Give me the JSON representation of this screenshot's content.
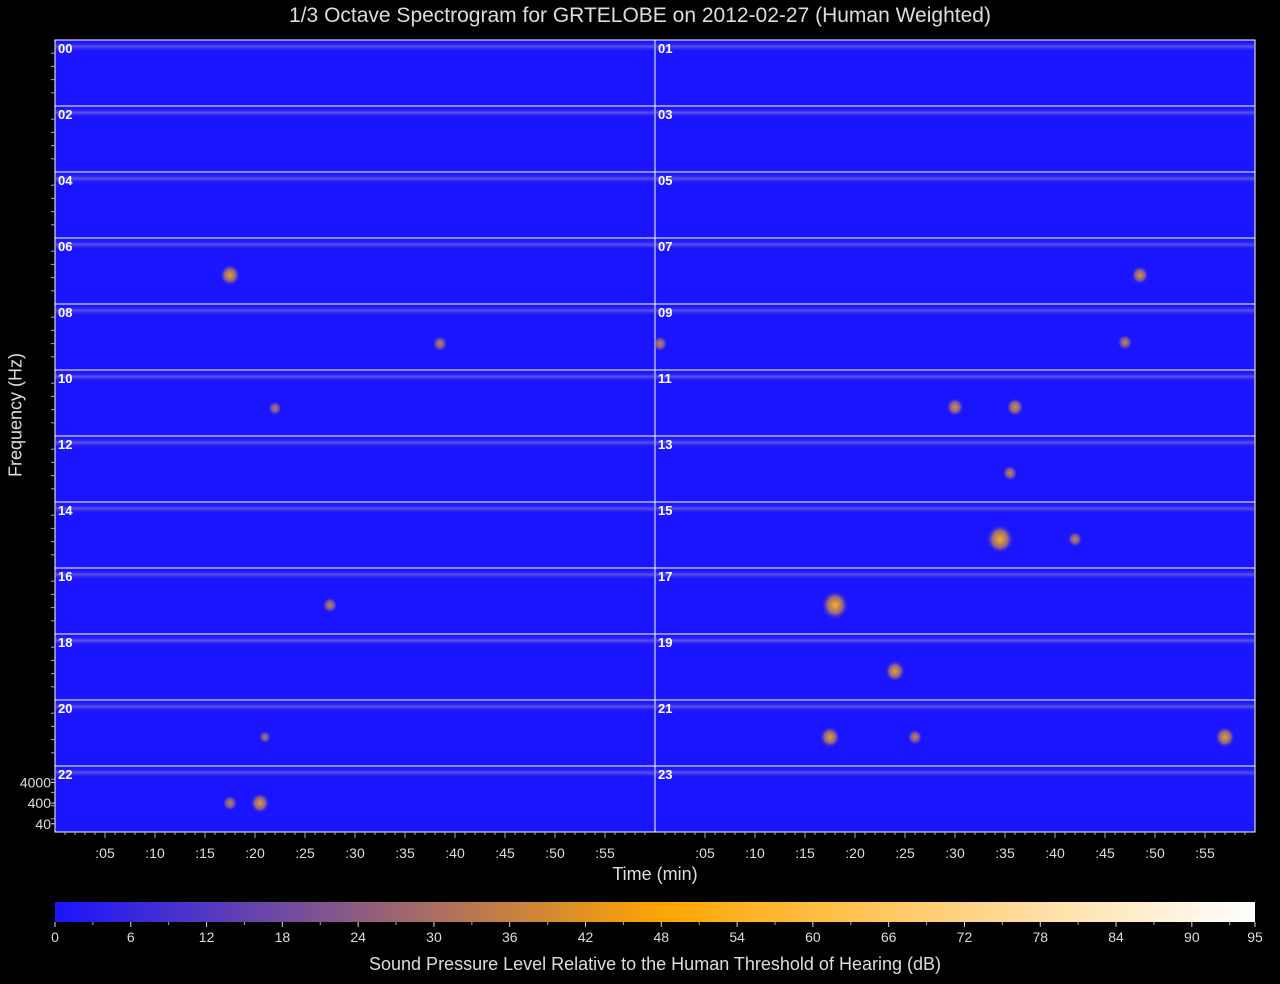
{
  "chart_data": {
    "type": "heatmap",
    "title": "1/3 Octave Spectrogram for GRTELOBE on 2012-02-27 (Human Weighted)",
    "xlabel": "Time (min)",
    "ylabel": "Frequency (Hz)",
    "hours": [
      "00",
      "01",
      "02",
      "03",
      "04",
      "05",
      "06",
      "07",
      "08",
      "09",
      "10",
      "11",
      "12",
      "13",
      "14",
      "15",
      "16",
      "17",
      "18",
      "19",
      "20",
      "21",
      "22",
      "23"
    ],
    "x_tick_labels": [
      ":05",
      ":10",
      ":15",
      ":20",
      ":25",
      ":30",
      ":35",
      ":40",
      ":45",
      ":50",
      ":55"
    ],
    "x_ticks_min": [
      5,
      10,
      15,
      20,
      25,
      30,
      35,
      40,
      45,
      50,
      55
    ],
    "xlim_min": [
      0,
      60
    ],
    "y_tick_labels": [
      "4000",
      "400",
      "40"
    ],
    "y_ticks_hz": [
      4000,
      400,
      40
    ],
    "ylim_hz": [
      20,
      20000
    ],
    "y_scale": "log",
    "colorbar": {
      "label": "Sound Pressure Level Relative to the Human Threshold of Hearing (dB)",
      "tick_labels": [
        "0",
        "6",
        "12",
        "18",
        "24",
        "30",
        "36",
        "42",
        "48",
        "54",
        "60",
        "66",
        "72",
        "78",
        "84",
        "90",
        "95"
      ],
      "ticks_db": [
        0,
        6,
        12,
        18,
        24,
        30,
        36,
        42,
        48,
        54,
        60,
        66,
        72,
        78,
        84,
        90,
        95
      ],
      "range_db": [
        0,
        95
      ],
      "colors": [
        "#1a14ff",
        "#ffa500",
        "#ffffff"
      ]
    },
    "events": [
      {
        "hour": "06",
        "minute": 17.5,
        "freq_hz": 400,
        "db": 42
      },
      {
        "hour": "07",
        "minute": 48.5,
        "freq_hz": 400,
        "db": 36
      },
      {
        "hour": "08",
        "minute": 38.5,
        "freq_hz": 300,
        "db": 30
      },
      {
        "hour": "09",
        "minute": 0.5,
        "freq_hz": 300,
        "db": 30
      },
      {
        "hour": "09",
        "minute": 47,
        "freq_hz": 350,
        "db": 30
      },
      {
        "hour": "10",
        "minute": 22,
        "freq_hz": 350,
        "db": 27
      },
      {
        "hour": "11",
        "minute": 30,
        "freq_hz": 400,
        "db": 36
      },
      {
        "hour": "11",
        "minute": 36,
        "freq_hz": 400,
        "db": 36
      },
      {
        "hour": "13",
        "minute": 35.5,
        "freq_hz": 400,
        "db": 30
      },
      {
        "hour": "15",
        "minute": 34.5,
        "freq_hz": 400,
        "db": 58
      },
      {
        "hour": "15",
        "minute": 42,
        "freq_hz": 400,
        "db": 30
      },
      {
        "hour": "16",
        "minute": 27.5,
        "freq_hz": 400,
        "db": 30
      },
      {
        "hour": "17",
        "minute": 18,
        "freq_hz": 400,
        "db": 58
      },
      {
        "hour": "19",
        "minute": 24,
        "freq_hz": 400,
        "db": 42
      },
      {
        "hour": "20",
        "minute": 21,
        "freq_hz": 400,
        "db": 24
      },
      {
        "hour": "21",
        "minute": 17.5,
        "freq_hz": 400,
        "db": 42
      },
      {
        "hour": "21",
        "minute": 26,
        "freq_hz": 400,
        "db": 30
      },
      {
        "hour": "21",
        "minute": 57,
        "freq_hz": 400,
        "db": 42
      },
      {
        "hour": "22",
        "minute": 17.5,
        "freq_hz": 400,
        "db": 30
      },
      {
        "hour": "22",
        "minute": 20.5,
        "freq_hz": 400,
        "db": 40
      }
    ]
  }
}
